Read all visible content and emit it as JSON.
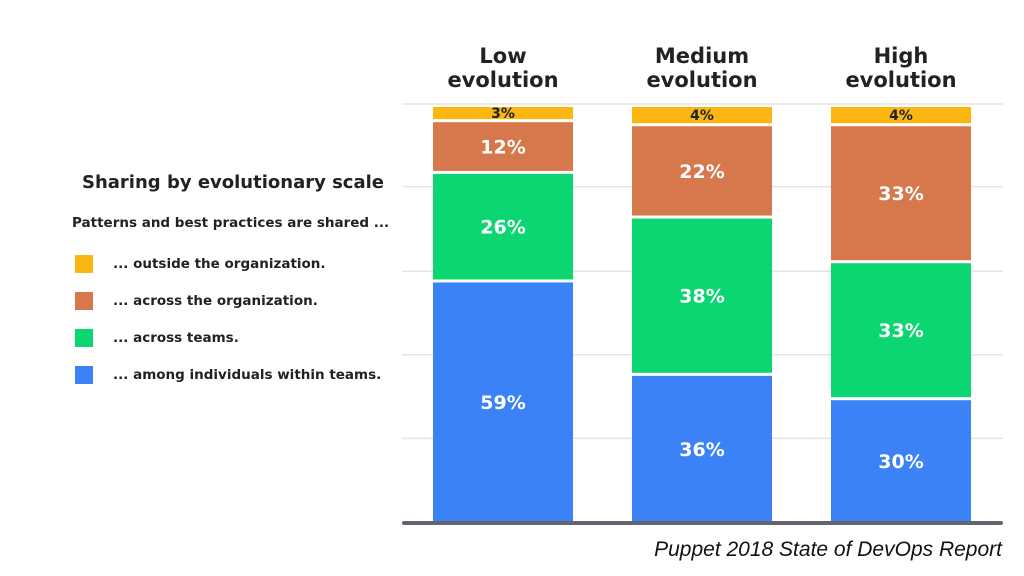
{
  "chart_data": {
    "type": "bar",
    "stacked": true,
    "title": "Sharing by evolutionary scale",
    "subtitle": "Patterns and best practices are shared ...",
    "categories": [
      "Low\nevolution",
      "Medium\nevolution",
      "High\nevolution"
    ],
    "series": [
      {
        "name": "... among individuals within teams.",
        "color": "#3b82f6",
        "values": [
          59,
          36,
          30
        ],
        "labels": [
          "59%",
          "36%",
          "30%"
        ]
      },
      {
        "name": "... across teams.",
        "color": "#0bd672",
        "values": [
          26,
          38,
          33
        ],
        "labels": [
          "26%",
          "38%",
          "33%"
        ]
      },
      {
        "name": "... across the organization.",
        "color": "#d6784b",
        "values": [
          12,
          22,
          33
        ],
        "labels": [
          "12%",
          "22%",
          "33%"
        ]
      },
      {
        "name": "... outside the organization.",
        "color": "#fbb612",
        "values": [
          3,
          4,
          4
        ],
        "labels": [
          "3%",
          "4%",
          "4%"
        ]
      }
    ],
    "ylim": [
      0,
      100
    ],
    "grid": true,
    "legend_position": "left"
  },
  "legend_order": [
    3,
    2,
    1,
    0
  ],
  "source": "Puppet 2018 State of DevOps Report"
}
